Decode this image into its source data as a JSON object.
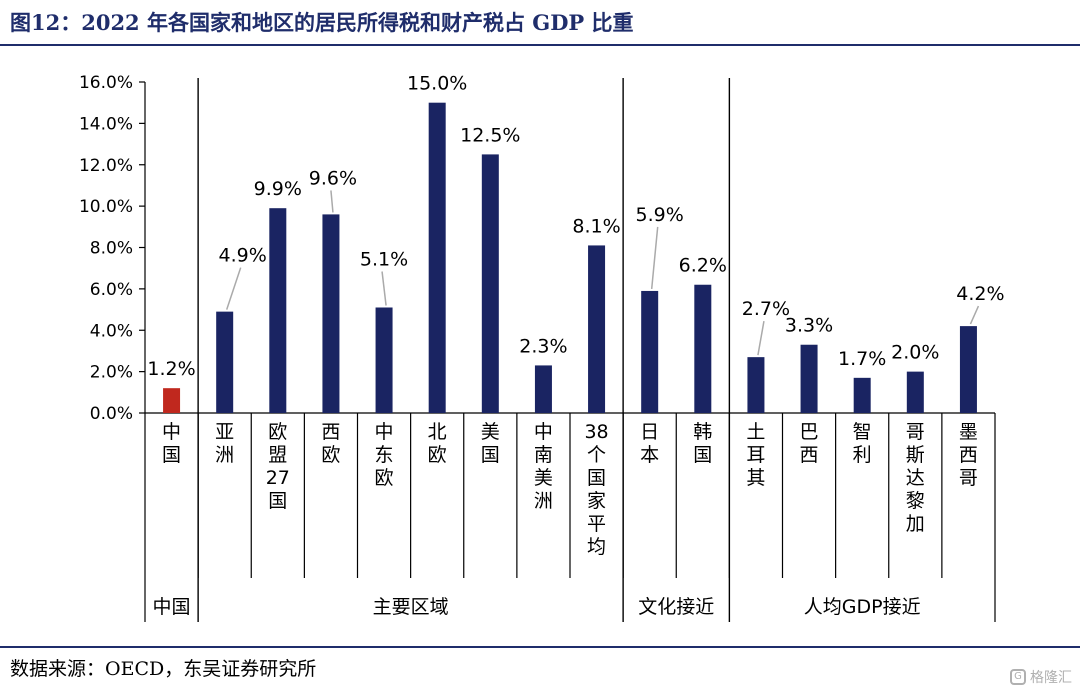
{
  "header": {
    "title": "图12：2022 年各国家和地区的居民所得税和财产税占 GDP 比重"
  },
  "footer": {
    "source": "数据来源：OECD，东吴证券研究所"
  },
  "watermark": {
    "text": "格隆汇",
    "icon": "G"
  },
  "chart_data": {
    "type": "bar",
    "ylim": [
      0,
      16
    ],
    "ytick_labels": [
      "0.0%",
      "2.0%",
      "4.0%",
      "6.0%",
      "8.0%",
      "10.0%",
      "12.0%",
      "14.0%",
      "16.0%"
    ],
    "categories": [
      "中国",
      "亚洲",
      "欧盟27国",
      "西欧",
      "中东欧",
      "北欧",
      "美国",
      "中南美洲",
      "38个国家平均",
      "日本",
      "韩国",
      "土耳其",
      "巴西",
      "智利",
      "哥斯达黎加",
      "墨西哥"
    ],
    "values": [
      1.2,
      4.9,
      9.9,
      9.6,
      5.1,
      15.0,
      12.5,
      2.3,
      8.1,
      5.9,
      6.2,
      2.7,
      3.3,
      1.7,
      2.0,
      4.2
    ],
    "data_labels": [
      "1.2%",
      "4.9%",
      "9.9%",
      "9.6%",
      "5.1%",
      "15.0%",
      "12.5%",
      "2.3%",
      "8.1%",
      "5.9%",
      "6.2%",
      "2.7%",
      "3.3%",
      "1.7%",
      "2.0%",
      "4.2%"
    ],
    "highlight_index": 0,
    "colors": {
      "bar": "#1a2462",
      "highlight": "#c0281e",
      "axis": "#000000"
    },
    "groups": [
      {
        "label": "中国",
        "start": 0,
        "end": 0
      },
      {
        "label": "主要区域",
        "start": 1,
        "end": 8
      },
      {
        "label": "文化接近",
        "start": 9,
        "end": 10
      },
      {
        "label": "人均GDP接近",
        "start": 11,
        "end": 15
      }
    ],
    "grid": false,
    "legend": "none"
  }
}
